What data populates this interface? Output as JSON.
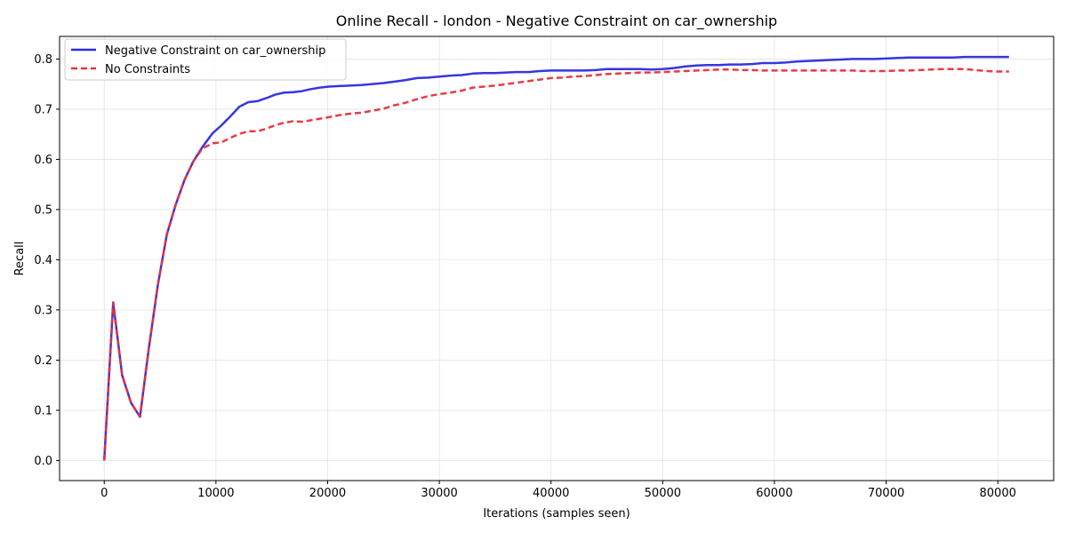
{
  "chart_data": {
    "type": "line",
    "title": "Online Recall - london - Negative Constraint on car_ownership",
    "xlabel": "Iterations (samples seen)",
    "ylabel": "Recall",
    "xlim": [
      -4000,
      85000
    ],
    "ylim": [
      -0.04,
      0.845
    ],
    "xticks": [
      0,
      10000,
      20000,
      30000,
      40000,
      50000,
      60000,
      70000,
      80000
    ],
    "xtick_labels": [
      "0",
      "10000",
      "20000",
      "30000",
      "40000",
      "50000",
      "60000",
      "70000",
      "80000"
    ],
    "yticks": [
      0.0,
      0.1,
      0.2,
      0.3,
      0.4,
      0.5,
      0.6,
      0.7,
      0.8
    ],
    "ytick_labels": [
      "0.0",
      "0.1",
      "0.2",
      "0.3",
      "0.4",
      "0.5",
      "0.6",
      "0.7",
      "0.8"
    ],
    "grid": true,
    "legend_position": "top-left",
    "series": [
      {
        "name": "Negative Constraint on car_ownership",
        "color": "#2b2be0",
        "style": "solid",
        "x": [
          0,
          800,
          1600,
          2400,
          3200,
          4000,
          4800,
          5600,
          6400,
          7200,
          8000,
          8800,
          9700,
          10500,
          11300,
          12100,
          12900,
          13700,
          14500,
          15300,
          16100,
          16900,
          17700,
          18500,
          19300,
          20100,
          21000,
          22000,
          23000,
          24000,
          25000,
          26000,
          27000,
          28000,
          29000,
          30000,
          31000,
          32000,
          33000,
          34000,
          35000,
          36000,
          37000,
          38000,
          39000,
          40000,
          41000,
          42000,
          43000,
          44000,
          45000,
          46000,
          47000,
          48000,
          49000,
          50000,
          51000,
          52000,
          53000,
          54000,
          55000,
          56000,
          57000,
          58000,
          59000,
          60000,
          61000,
          62000,
          63000,
          64000,
          65000,
          66000,
          67000,
          68000,
          69000,
          70000,
          71000,
          72000,
          73000,
          74000,
          75000,
          76000,
          77000,
          78000,
          79000,
          80000,
          81000
        ],
        "y": [
          0.0,
          0.315,
          0.17,
          0.115,
          0.087,
          0.225,
          0.35,
          0.45,
          0.51,
          0.56,
          0.597,
          0.625,
          0.652,
          0.668,
          0.686,
          0.705,
          0.714,
          0.716,
          0.722,
          0.729,
          0.733,
          0.734,
          0.736,
          0.74,
          0.743,
          0.745,
          0.746,
          0.747,
          0.748,
          0.75,
          0.752,
          0.755,
          0.758,
          0.762,
          0.763,
          0.765,
          0.767,
          0.768,
          0.771,
          0.772,
          0.772,
          0.773,
          0.774,
          0.774,
          0.776,
          0.777,
          0.777,
          0.777,
          0.777,
          0.778,
          0.78,
          0.78,
          0.78,
          0.78,
          0.779,
          0.78,
          0.782,
          0.785,
          0.787,
          0.788,
          0.788,
          0.789,
          0.789,
          0.79,
          0.792,
          0.792,
          0.793,
          0.795,
          0.796,
          0.797,
          0.798,
          0.799,
          0.8,
          0.8,
          0.8,
          0.801,
          0.802,
          0.803,
          0.803,
          0.803,
          0.803,
          0.803,
          0.804,
          0.804,
          0.804,
          0.804,
          0.804
        ]
      },
      {
        "name": "No Constraints",
        "color": "#e8303a",
        "style": "dashed",
        "x": [
          0,
          800,
          1600,
          2400,
          3200,
          4000,
          4800,
          5600,
          6400,
          7200,
          8000,
          8800,
          9700,
          10500,
          11300,
          12100,
          12900,
          13700,
          14500,
          15300,
          16100,
          16900,
          17700,
          18500,
          19300,
          20100,
          21000,
          22000,
          23000,
          24000,
          25000,
          26000,
          27000,
          28000,
          29000,
          30000,
          31000,
          32000,
          33000,
          34000,
          35000,
          36000,
          37000,
          38000,
          39000,
          40000,
          41000,
          42000,
          43000,
          44000,
          45000,
          46000,
          47000,
          48000,
          49000,
          50000,
          51000,
          52000,
          53000,
          54000,
          55000,
          56000,
          57000,
          58000,
          59000,
          60000,
          61000,
          62000,
          63000,
          64000,
          65000,
          66000,
          67000,
          68000,
          69000,
          70000,
          71000,
          72000,
          73000,
          74000,
          75000,
          76000,
          77000,
          78000,
          79000,
          80000,
          81000
        ],
        "y": [
          0.0,
          0.315,
          0.17,
          0.115,
          0.087,
          0.225,
          0.35,
          0.45,
          0.51,
          0.56,
          0.597,
          0.622,
          0.632,
          0.634,
          0.643,
          0.651,
          0.656,
          0.656,
          0.661,
          0.668,
          0.673,
          0.676,
          0.675,
          0.678,
          0.681,
          0.684,
          0.688,
          0.691,
          0.693,
          0.697,
          0.701,
          0.708,
          0.713,
          0.72,
          0.726,
          0.73,
          0.733,
          0.737,
          0.743,
          0.745,
          0.747,
          0.75,
          0.753,
          0.756,
          0.759,
          0.762,
          0.763,
          0.765,
          0.766,
          0.768,
          0.77,
          0.771,
          0.772,
          0.773,
          0.773,
          0.774,
          0.775,
          0.776,
          0.777,
          0.778,
          0.779,
          0.779,
          0.778,
          0.778,
          0.777,
          0.777,
          0.777,
          0.777,
          0.777,
          0.777,
          0.777,
          0.777,
          0.777,
          0.776,
          0.776,
          0.776,
          0.777,
          0.777,
          0.778,
          0.779,
          0.78,
          0.78,
          0.78,
          0.778,
          0.776,
          0.775,
          0.775
        ]
      }
    ]
  }
}
